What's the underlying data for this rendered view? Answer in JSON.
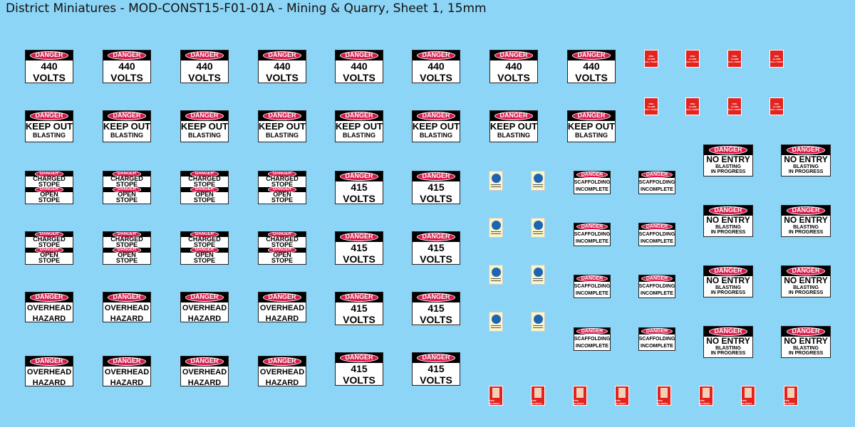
{
  "header": {
    "title": "District Miniatures - MOD-CONST15-F01-01A - Mining & Quarry, Sheet 1, 15mm"
  },
  "signs": {
    "volts440": {
      "banner": "DANGER",
      "lines": [
        "440",
        "VOLTS"
      ]
    },
    "keep_out": {
      "banner": "DANGER",
      "lines": [
        "KEEP OUT",
        "BLASTING"
      ]
    },
    "charged_stope": {
      "banner": "DANGER",
      "lines": [
        "CHARGED",
        "STOPE"
      ]
    },
    "open_stope": {
      "banner": "DANGER",
      "lines": [
        "OPEN",
        "STOPE"
      ]
    },
    "volts415": {
      "banner": "DANGER",
      "lines": [
        "415",
        "VOLTS"
      ]
    },
    "overhead": {
      "banner": "DANGER",
      "lines": [
        "OVERHEAD",
        "HAZARD"
      ]
    },
    "scaffolding": {
      "banner": "DANGER",
      "lines": [
        "SCAFFOLDING",
        "INCOMPLETE"
      ]
    },
    "no_entry": {
      "banner": "DANGER",
      "lines": [
        "NO ENTRY",
        "BLASTING",
        "IN PROGRESS"
      ]
    },
    "fire_alarm": {
      "lines": [
        "FIRE",
        "ALARM",
        "CALL POINT"
      ]
    },
    "fire_blanket": {
      "lines": [
        "FIRE BLANKET"
      ]
    }
  }
}
